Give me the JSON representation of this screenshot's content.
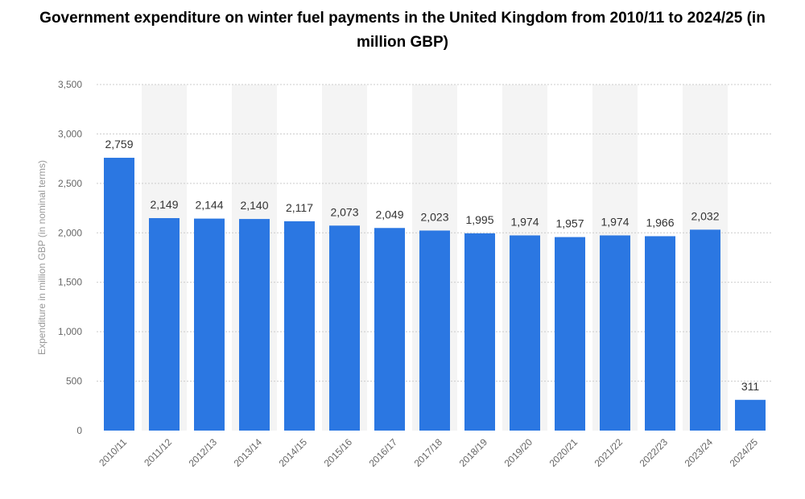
{
  "chart_data": {
    "type": "bar",
    "title": "Government expenditure on winter fuel payments in the United Kingdom from 2010/11 to 2024/25 (in million GBP)",
    "xlabel": "",
    "ylabel": "Expenditure in million GBP (in nominal terms)",
    "categories": [
      "2010/11",
      "2011/12",
      "2012/13",
      "2013/14",
      "2014/15",
      "2015/16",
      "2016/17",
      "2017/18",
      "2018/19",
      "2019/20",
      "2020/21",
      "2021/22",
      "2022/23",
      "2023/24",
      "2024/25"
    ],
    "values": [
      2759,
      2149,
      2144,
      2140,
      2117,
      2073,
      2049,
      2023,
      1995,
      1974,
      1957,
      1974,
      1966,
      2032,
      311
    ],
    "value_labels": [
      "2,759",
      "2,149",
      "2,144",
      "2,140",
      "2,117",
      "2,073",
      "2,049",
      "2,023",
      "1,995",
      "1,974",
      "1,957",
      "1,974",
      "1,966",
      "2,032",
      "311"
    ],
    "ylim": [
      0,
      3500
    ],
    "yticks": [
      0,
      500,
      1000,
      1500,
      2000,
      2500,
      3000,
      3500
    ],
    "ytick_labels": [
      "0",
      "500",
      "1,000",
      "1,500",
      "2,000",
      "2,500",
      "3,000",
      "3,500"
    ],
    "grid": true,
    "legend": "none",
    "colors": {
      "bar": "#2b77e2",
      "band": "#f4f4f4",
      "grid": "#cccccc"
    }
  }
}
